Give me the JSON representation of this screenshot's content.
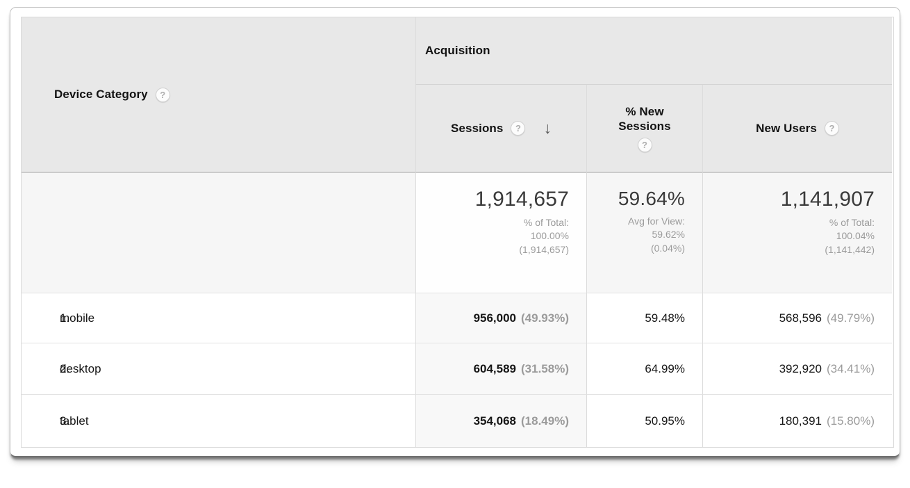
{
  "table": {
    "dimension_header": {
      "label": "Device Category"
    },
    "group_header": {
      "label": "Acquisition"
    },
    "columns": {
      "sessions": {
        "label": "Sessions",
        "sorted": "descending"
      },
      "pct_new_sessions": {
        "label": "% New Sessions"
      },
      "new_users": {
        "label": "New Users"
      }
    },
    "icons": {
      "help": "?",
      "sort_descending": "↓"
    },
    "totals": {
      "sessions": {
        "value": "1,914,657",
        "sub_line1": "% of Total:",
        "sub_line2": "100.00%",
        "sub_line3": "(1,914,657)"
      },
      "pct_new_sessions": {
        "value": "59.64%",
        "sub_line1": "Avg for View:",
        "sub_line2": "59.62%",
        "sub_line3": "(0.04%)"
      },
      "new_users": {
        "value": "1,141,907",
        "sub_line1": "% of Total:",
        "sub_line2": "100.04%",
        "sub_line3": "(1,141,442)"
      }
    },
    "rows": [
      {
        "rank": "1.",
        "name": "mobile",
        "sessions": "956,000",
        "sessions_pct": "(49.93%)",
        "pct_new_sessions": "59.48%",
        "new_users": "568,596",
        "new_users_pct": "(49.79%)"
      },
      {
        "rank": "2.",
        "name": "desktop",
        "sessions": "604,589",
        "sessions_pct": "(31.58%)",
        "pct_new_sessions": "64.99%",
        "new_users": "392,920",
        "new_users_pct": "(34.41%)"
      },
      {
        "rank": "3.",
        "name": "tablet",
        "sessions": "354,068",
        "sessions_pct": "(18.49%)",
        "pct_new_sessions": "50.95%",
        "new_users": "180,391",
        "new_users_pct": "(15.80%)"
      }
    ],
    "colors": {
      "header_bg": "#e8e8e8",
      "totals_bg": "#f6f6f6",
      "sorted_column_bg": "#f8f8f8",
      "muted_text": "#9b9b9b"
    }
  }
}
